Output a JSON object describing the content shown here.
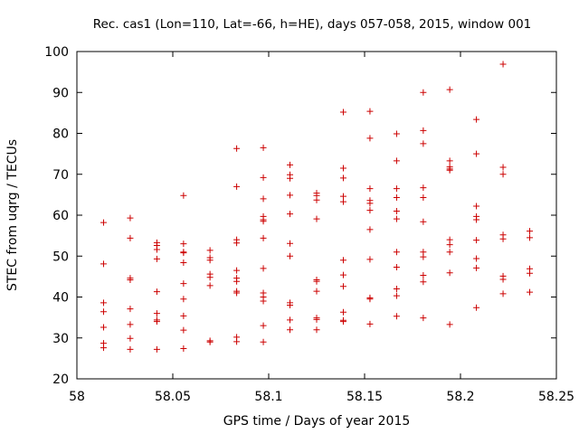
{
  "chart_data": {
    "type": "scatter",
    "title": "Rec. cas1 (Lon=110, Lat=-66, h=HE), days 057-058, 2015, window 001",
    "xlabel": "GPS time / Days of year 2015",
    "ylabel": "STEC from uqrg / TECUs",
    "xlim": [
      58,
      58.25
    ],
    "ylim": [
      20,
      100
    ],
    "xticks": [
      58,
      58.05,
      58.1,
      58.15,
      58.2,
      58.25
    ],
    "xtick_labels": [
      "58",
      "58.05",
      "58.1",
      "58.15",
      "58.2",
      "58.25"
    ],
    "yticks": [
      20,
      30,
      40,
      50,
      60,
      70,
      80,
      90,
      100
    ],
    "ytick_labels": [
      "20",
      "30",
      "40",
      "50",
      "60",
      "70",
      "80",
      "90",
      "100"
    ],
    "grid": false,
    "marker": "+",
    "color": "#cc0000",
    "series": [
      {
        "points": [
          [
            58.0139,
            58.2
          ],
          [
            58.0139,
            48.1
          ],
          [
            58.0139,
            38.6
          ],
          [
            58.0139,
            36.4
          ],
          [
            58.0139,
            32.6
          ],
          [
            58.0139,
            28.7
          ],
          [
            58.0139,
            27.6
          ],
          [
            58.0278,
            59.3
          ],
          [
            58.0278,
            54.4
          ],
          [
            58.0278,
            44.6
          ],
          [
            58.0278,
            44.2
          ],
          [
            58.0278,
            37.1
          ],
          [
            58.0278,
            33.3
          ],
          [
            58.0278,
            29.9
          ],
          [
            58.0278,
            27.2
          ],
          [
            58.0417,
            53.3
          ],
          [
            58.0417,
            52.6
          ],
          [
            58.0417,
            51.6
          ],
          [
            58.0417,
            49.3
          ],
          [
            58.0417,
            41.3
          ],
          [
            58.0417,
            36.0
          ],
          [
            58.0417,
            34.4
          ],
          [
            58.0417,
            34.0
          ],
          [
            58.0417,
            27.2
          ],
          [
            58.0556,
            64.8
          ],
          [
            58.0556,
            53.0
          ],
          [
            58.0556,
            51.0
          ],
          [
            58.0556,
            50.8
          ],
          [
            58.0556,
            48.4
          ],
          [
            58.0556,
            43.3
          ],
          [
            58.0556,
            39.5
          ],
          [
            58.0556,
            35.4
          ],
          [
            58.0556,
            31.9
          ],
          [
            58.0556,
            27.4
          ],
          [
            58.0694,
            51.4
          ],
          [
            58.0694,
            49.6
          ],
          [
            58.0694,
            49.0
          ],
          [
            58.0694,
            45.6
          ],
          [
            58.0694,
            44.8
          ],
          [
            58.0694,
            42.8
          ],
          [
            58.0694,
            29.3
          ],
          [
            58.0694,
            29.0
          ],
          [
            58.0833,
            76.3
          ],
          [
            58.0833,
            67.0
          ],
          [
            58.0833,
            54.0
          ],
          [
            58.0833,
            53.2
          ],
          [
            58.0833,
            46.5
          ],
          [
            58.0833,
            44.6
          ],
          [
            58.0833,
            43.8
          ],
          [
            58.0833,
            41.4
          ],
          [
            58.0833,
            41.0
          ],
          [
            58.0833,
            30.2
          ],
          [
            58.0833,
            29.1
          ],
          [
            58.0972,
            76.5
          ],
          [
            58.0972,
            69.2
          ],
          [
            58.0972,
            64.0
          ],
          [
            58.0972,
            59.7
          ],
          [
            58.0972,
            58.9
          ],
          [
            58.0972,
            58.5
          ],
          [
            58.0972,
            54.4
          ],
          [
            58.0972,
            47.0
          ],
          [
            58.0972,
            41.0
          ],
          [
            58.0972,
            40.0
          ],
          [
            58.0972,
            39.0
          ],
          [
            58.0972,
            33.0
          ],
          [
            58.0972,
            29.0
          ],
          [
            58.1111,
            72.3
          ],
          [
            58.1111,
            69.9
          ],
          [
            58.1111,
            69.0
          ],
          [
            58.1111,
            64.9
          ],
          [
            58.1111,
            60.3
          ],
          [
            58.1111,
            53.1
          ],
          [
            58.1111,
            50.0
          ],
          [
            58.1111,
            38.6
          ],
          [
            58.1111,
            38.0
          ],
          [
            58.1111,
            34.4
          ],
          [
            58.1111,
            32.0
          ],
          [
            58.125,
            65.4
          ],
          [
            58.125,
            64.8
          ],
          [
            58.125,
            63.7
          ],
          [
            58.125,
            59.1
          ],
          [
            58.125,
            44.2
          ],
          [
            58.125,
            43.8
          ],
          [
            58.125,
            41.4
          ],
          [
            58.125,
            34.9
          ],
          [
            58.125,
            34.5
          ],
          [
            58.125,
            32.0
          ],
          [
            58.1389,
            85.2
          ],
          [
            58.1389,
            71.5
          ],
          [
            58.1389,
            69.1
          ],
          [
            58.1389,
            64.6
          ],
          [
            58.1389,
            63.3
          ],
          [
            58.1389,
            49.0
          ],
          [
            58.1389,
            45.4
          ],
          [
            58.1389,
            42.6
          ],
          [
            58.1389,
            36.3
          ],
          [
            58.1389,
            34.3
          ],
          [
            58.1389,
            34.0
          ],
          [
            58.1528,
            85.4
          ],
          [
            58.1528,
            78.8
          ],
          [
            58.1528,
            66.5
          ],
          [
            58.1528,
            63.6
          ],
          [
            58.1528,
            62.9
          ],
          [
            58.1528,
            61.2
          ],
          [
            58.1528,
            56.5
          ],
          [
            58.1528,
            49.2
          ],
          [
            58.1528,
            39.8
          ],
          [
            58.1528,
            39.5
          ],
          [
            58.1528,
            33.4
          ],
          [
            58.1667,
            79.9
          ],
          [
            58.1667,
            73.3
          ],
          [
            58.1667,
            66.5
          ],
          [
            58.1667,
            64.3
          ],
          [
            58.1667,
            61.0
          ],
          [
            58.1667,
            59.1
          ],
          [
            58.1667,
            51.0
          ],
          [
            58.1667,
            47.3
          ],
          [
            58.1667,
            42.0
          ],
          [
            58.1667,
            40.3
          ],
          [
            58.1667,
            35.3
          ],
          [
            58.1806,
            90.0
          ],
          [
            58.1806,
            80.7
          ],
          [
            58.1806,
            77.5
          ],
          [
            58.1806,
            66.7
          ],
          [
            58.1806,
            64.3
          ],
          [
            58.1806,
            58.4
          ],
          [
            58.1806,
            51.0
          ],
          [
            58.1806,
            49.8
          ],
          [
            58.1806,
            45.3
          ],
          [
            58.1806,
            43.7
          ],
          [
            58.1806,
            34.9
          ],
          [
            58.1944,
            90.7
          ],
          [
            58.1944,
            73.3
          ],
          [
            58.1944,
            71.8
          ],
          [
            58.1944,
            71.3
          ],
          [
            58.1944,
            71.0
          ],
          [
            58.1944,
            54.0
          ],
          [
            58.1944,
            52.8
          ],
          [
            58.1944,
            51.0
          ],
          [
            58.1944,
            45.9
          ],
          [
            58.1944,
            33.3
          ],
          [
            58.2083,
            83.4
          ],
          [
            58.2083,
            75.0
          ],
          [
            58.2083,
            62.2
          ],
          [
            58.2083,
            59.7
          ],
          [
            58.2083,
            58.9
          ],
          [
            58.2083,
            53.9
          ],
          [
            58.2083,
            49.4
          ],
          [
            58.2083,
            47.1
          ],
          [
            58.2083,
            37.4
          ],
          [
            58.2222,
            96.9
          ],
          [
            58.2222,
            71.7
          ],
          [
            58.2222,
            70.0
          ],
          [
            58.2222,
            55.2
          ],
          [
            58.2222,
            54.2
          ],
          [
            58.2222,
            45.1
          ],
          [
            58.2222,
            44.3
          ],
          [
            58.2222,
            40.8
          ],
          [
            58.2361,
            56.1
          ],
          [
            58.2361,
            54.5
          ],
          [
            58.2361,
            46.9
          ],
          [
            58.2361,
            45.8
          ],
          [
            58.2361,
            41.2
          ]
        ]
      }
    ]
  }
}
